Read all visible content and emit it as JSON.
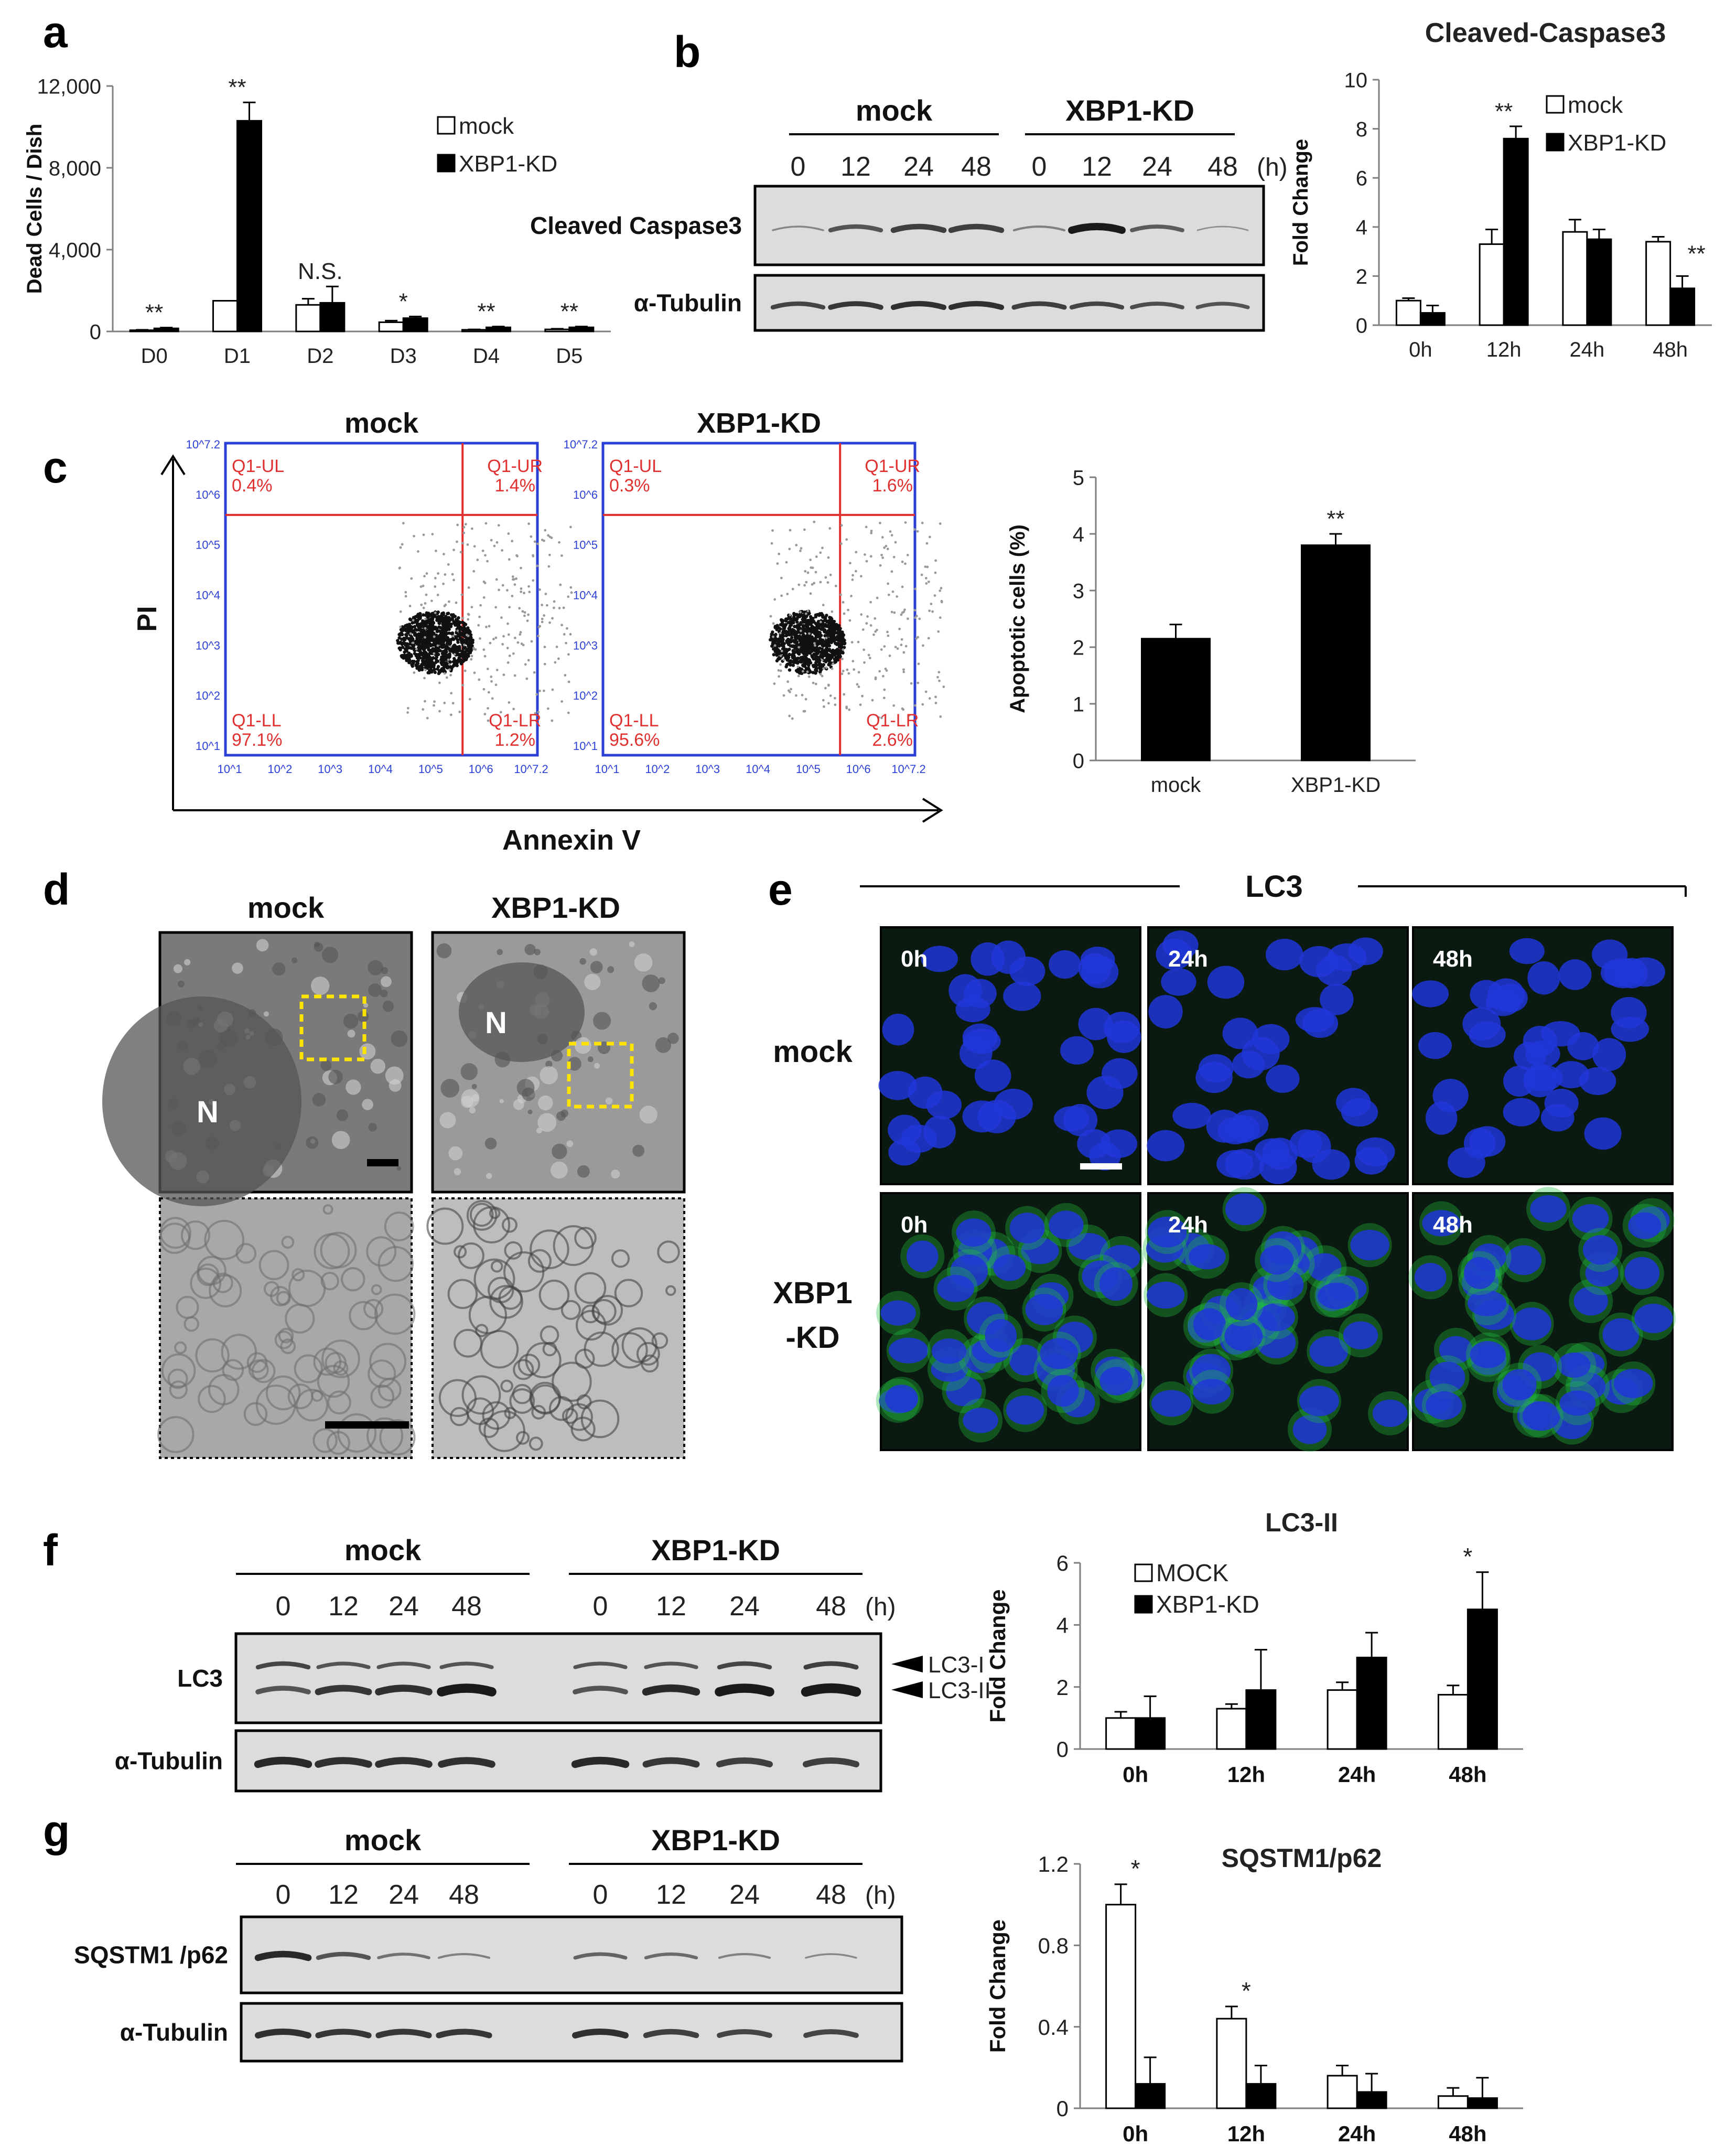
{
  "panel_labels": [
    "a",
    "b",
    "c",
    "d",
    "e",
    "f",
    "g"
  ],
  "groups": {
    "mock": "mock",
    "kd": "XBP1-KD"
  },
  "chart_data": [
    {
      "id": "a",
      "type": "bar",
      "ylabel": "Dead Cells / Dish",
      "yticks": [
        "0",
        "4,000",
        "8,000",
        "12,000"
      ],
      "ylim": [
        0,
        12000
      ],
      "categories": [
        "D0",
        "D1",
        "D2",
        "D3",
        "D4",
        "D5"
      ],
      "series": [
        {
          "name": "mock",
          "values": [
            60,
            1500,
            1300,
            450,
            80,
            100
          ],
          "errors": [
            20,
            0,
            300,
            80,
            20,
            30
          ],
          "color": "#ffffff"
        },
        {
          "name": "XBP1-KD",
          "values": [
            150,
            10300,
            1400,
            650,
            200,
            200
          ],
          "errors": [
            40,
            900,
            800,
            80,
            40,
            40
          ],
          "color": "#000000"
        }
      ],
      "annotations": [
        "**",
        "**",
        "N.S.",
        "*",
        "**",
        "**"
      ],
      "legend": "top-right"
    },
    {
      "id": "b",
      "type": "bar",
      "title": "Cleaved-Caspase3",
      "ylabel": "Fold Change",
      "yticks": [
        "0",
        "2",
        "4",
        "6",
        "8",
        "10"
      ],
      "ylim": [
        0,
        10
      ],
      "categories": [
        "0h",
        "12h",
        "24h",
        "48h"
      ],
      "series": [
        {
          "name": "mock",
          "values": [
            1.0,
            3.3,
            3.8,
            3.4
          ],
          "errors": [
            0.1,
            0.6,
            0.5,
            0.2
          ],
          "color": "#ffffff"
        },
        {
          "name": "XBP1-KD",
          "values": [
            0.5,
            7.6,
            3.5,
            1.5
          ],
          "errors": [
            0.3,
            0.5,
            0.4,
            0.5
          ],
          "color": "#000000"
        }
      ],
      "annotations": [
        "",
        "**",
        "",
        "**"
      ],
      "legend": "top-right"
    },
    {
      "id": "c",
      "type": "bar",
      "ylabel": "Apoptotic cells (%)",
      "yticks": [
        "0",
        "1",
        "2",
        "3",
        "4",
        "5"
      ],
      "ylim": [
        0,
        5
      ],
      "categories": [
        "mock",
        "XBP1-KD"
      ],
      "series": [
        {
          "values": [
            2.15,
            3.8
          ],
          "errors": [
            0.25,
            0.2
          ],
          "color": "#000000"
        }
      ],
      "annotations": [
        "",
        "**"
      ]
    },
    {
      "id": "f",
      "type": "bar",
      "title": "LC3-II",
      "ylabel": "Fold Change",
      "yticks": [
        "0",
        "2",
        "4",
        "6"
      ],
      "ylim": [
        0,
        6
      ],
      "categories": [
        "0h",
        "12h",
        "24h",
        "48h"
      ],
      "series": [
        {
          "name": "MOCK",
          "values": [
            1.0,
            1.3,
            1.9,
            1.75
          ],
          "errors": [
            0.2,
            0.15,
            0.25,
            0.3
          ],
          "color": "#ffffff"
        },
        {
          "name": "XBP1-KD",
          "values": [
            1.0,
            1.9,
            2.95,
            4.5
          ],
          "errors": [
            0.7,
            1.3,
            0.8,
            1.2
          ],
          "color": "#000000"
        }
      ],
      "annotations": [
        "",
        "",
        "",
        "*"
      ],
      "legend": "top-left"
    },
    {
      "id": "g",
      "type": "bar",
      "title": "SQSTM1/p62",
      "ylabel": "Fold Change",
      "yticks": [
        "0",
        "0.4",
        "0.8",
        "1.2"
      ],
      "ylim": [
        0,
        1.2
      ],
      "categories": [
        "0h",
        "12h",
        "24h",
        "48h"
      ],
      "series": [
        {
          "values": [
            1.0,
            0.44,
            0.16,
            0.06
          ],
          "errors": [
            0.1,
            0.06,
            0.05,
            0.04
          ],
          "color": "#ffffff"
        },
        {
          "values": [
            0.12,
            0.12,
            0.08,
            0.05
          ],
          "errors": [
            0.13,
            0.09,
            0.09,
            0.1
          ],
          "color": "#000000"
        }
      ],
      "annotations": [
        "*",
        "*",
        "",
        ""
      ]
    }
  ],
  "blots": {
    "timepoints": [
      "0",
      "12",
      "24",
      "48",
      "0",
      "12",
      "24",
      "48"
    ],
    "hours_unit": "(h)",
    "b_rows": [
      "Cleaved Caspase3",
      "α-Tubulin"
    ],
    "f_rows": [
      "LC3",
      "α-Tubulin"
    ],
    "f_bands": [
      "LC3-I",
      "LC3-II"
    ],
    "g_rows": [
      "SQSTM1 /p62",
      "α-Tubulin"
    ]
  },
  "flow": {
    "titles": [
      "mock",
      "XBP1-KD"
    ],
    "y_axis": "PI",
    "x_axis": "Annexin V",
    "quadrants": [
      {
        "UL": "Q1-UL",
        "UL_v": "0.4%",
        "UR": "Q1-UR",
        "UR_v": "1.4%",
        "LL": "Q1-LL",
        "LL_v": "97.1%",
        "LR": "Q1-LR",
        "LR_v": "1.2%"
      },
      {
        "UL": "Q1-UL",
        "UL_v": "0.3%",
        "UR": "Q1-UR",
        "UR_v": "1.6%",
        "LL": "Q1-LL",
        "LL_v": "95.6%",
        "LR": "Q1-LR",
        "LR_v": "2.6%"
      }
    ],
    "ticks": [
      "10^1",
      "10^2",
      "10^3",
      "10^4",
      "10^5",
      "10^6",
      "10^7.2"
    ]
  },
  "em": {
    "titles": [
      "mock",
      "XBP1-KD"
    ],
    "nucleus": "N"
  },
  "lc3": {
    "title": "LC3",
    "row_labels": [
      "mock",
      "XBP1 -KD"
    ],
    "times": [
      "0h",
      "24h",
      "48h"
    ]
  }
}
